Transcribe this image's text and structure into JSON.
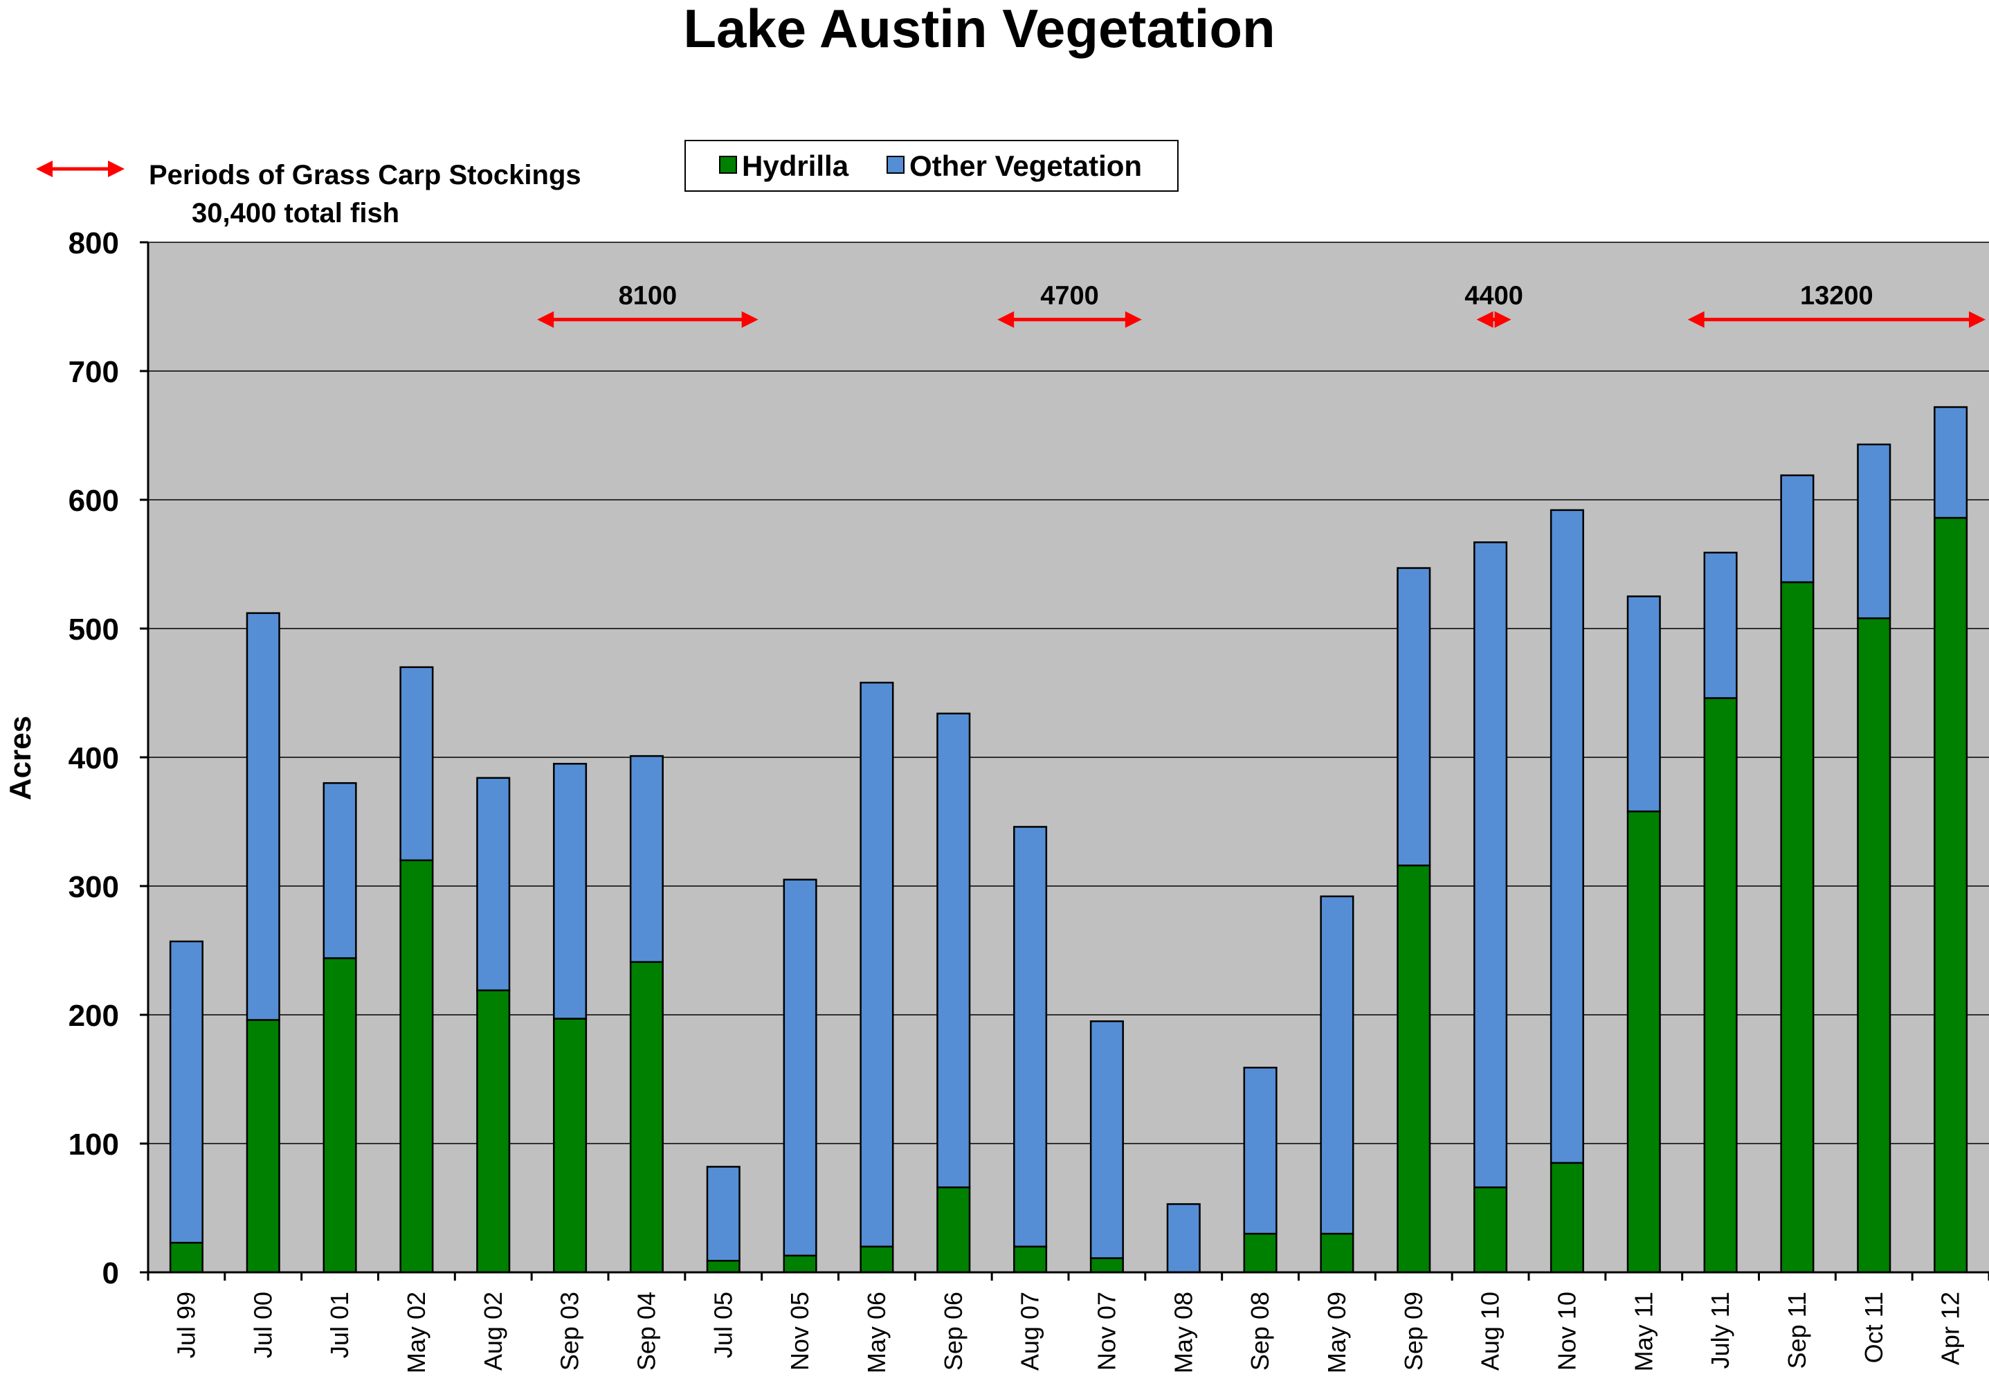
{
  "chart_data": {
    "type": "bar",
    "stacked": true,
    "title": "Lake Austin Vegetation",
    "xlabel": "",
    "ylabel": "Acres",
    "ylim": [
      0,
      800
    ],
    "yticks": [
      "0",
      "100",
      "200",
      "300",
      "400",
      "500",
      "600",
      "700",
      "800"
    ],
    "grid": true,
    "legend_position": "top-center",
    "categories": [
      "Jul 99",
      "Jul 00",
      "Jul 01",
      "May 02",
      "Aug 02",
      "Sep 03",
      "Sep 04",
      "Jul 05",
      "Nov 05",
      "May 06",
      "Sep 06",
      "Aug 07",
      "Nov 07",
      "May 08",
      "Sep 08",
      "May 09",
      "Sep 09",
      "Aug 10",
      "Nov 10",
      "May 11",
      "July 11",
      "Sep 11",
      "Oct 11",
      "Apr 12"
    ],
    "series": [
      {
        "name": "Hydrilla",
        "color": "#008000",
        "values": [
          23,
          196,
          244,
          320,
          219,
          197,
          241,
          9,
          13,
          20,
          66,
          20,
          11,
          0,
          30,
          30,
          316,
          66,
          85,
          358,
          446,
          536,
          508,
          586
        ]
      },
      {
        "name": "Other Vegetation",
        "color": "#558ed5",
        "values": [
          234,
          316,
          136,
          150,
          165,
          198,
          160,
          73,
          292,
          438,
          368,
          326,
          184,
          53,
          129,
          262,
          231,
          501,
          507,
          167,
          113,
          83,
          135,
          86
        ]
      }
    ],
    "annotation": {
      "text_line1": "Periods of Grass Carp Stockings",
      "text_line2": "30,400 total fish",
      "arrow_color": "#ff0000"
    },
    "stocking_periods": [
      {
        "label": "8100",
        "from": "Sep 03",
        "to": "Jul 05"
      },
      {
        "label": "4700",
        "from": "Aug 07",
        "to": "Nov 07"
      },
      {
        "label": "4400",
        "from": "Aug 10",
        "to": "Aug 10"
      },
      {
        "label": "13200",
        "from": "July 11",
        "to": "Apr 12"
      }
    ],
    "colors": {
      "plot_background": "#c0c0c0",
      "grid": "#000000"
    }
  }
}
